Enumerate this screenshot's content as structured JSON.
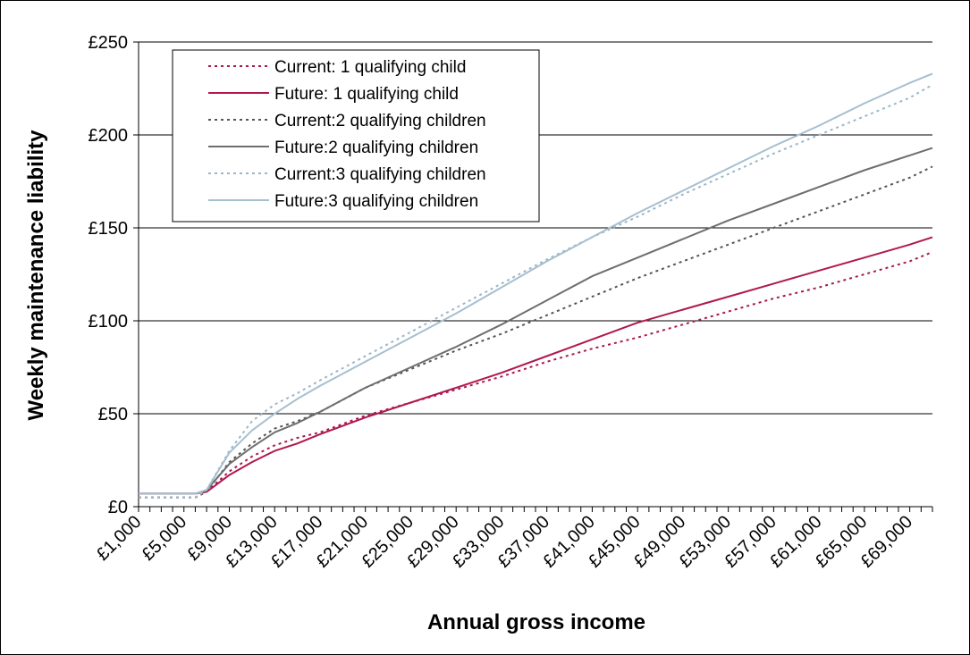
{
  "colors": {
    "current_1": "#a8184f",
    "future_1": "#b0184f",
    "current_2": "#555555",
    "future_2": "#6e6e6e",
    "current_3": "#9bb6c8",
    "future_3": "#a6bfcf"
  },
  "chart_data": {
    "type": "line",
    "xlabel": "Annual gross income",
    "ylabel": "Weekly maintenance liability",
    "ylim": [
      0,
      250
    ],
    "yticks": [
      "£0",
      "£50",
      "£100",
      "£150",
      "£200",
      "£250"
    ],
    "ytick_values": [
      0,
      50,
      100,
      150,
      200,
      250
    ],
    "xlim": [
      1000,
      71000
    ],
    "xtick_labels": [
      "£1,000",
      "£5,000",
      "£9,000",
      "£13,000",
      "£17,000",
      "£21,000",
      "£25,000",
      "£29,000",
      "£33,000",
      "£37,000",
      "£41,000",
      "£45,000",
      "£49,000",
      "£53,000",
      "£57,000",
      "£61,000",
      "£65,000",
      "£69,000"
    ],
    "xtick_values": [
      1000,
      5000,
      9000,
      13000,
      17000,
      21000,
      25000,
      29000,
      33000,
      37000,
      41000,
      45000,
      49000,
      53000,
      57000,
      61000,
      65000,
      69000
    ],
    "grid": "horizontal",
    "legend_position": "top-left",
    "x": [
      1000,
      5000,
      6000,
      7000,
      9000,
      11000,
      13000,
      15000,
      17000,
      21000,
      25000,
      29000,
      33000,
      37000,
      41000,
      45000,
      49000,
      53000,
      57000,
      61000,
      65000,
      69000,
      71000
    ],
    "series": [
      {
        "name": "Current: 1 qualifying child",
        "style": "dotted",
        "color_key": "current_1",
        "values": [
          5,
          5,
          5,
          8,
          19,
          27,
          33,
          37,
          40,
          49,
          56,
          63,
          70,
          78,
          85,
          91,
          98,
          105,
          112,
          118,
          125,
          132,
          137
        ]
      },
      {
        "name": "Future: 1 qualifying child",
        "style": "solid",
        "color_key": "future_1",
        "values": [
          7,
          7,
          7,
          8,
          17,
          24,
          30,
          34,
          39,
          48,
          56,
          64,
          72,
          81,
          90,
          99,
          106,
          113,
          120,
          127,
          134,
          141,
          145
        ]
      },
      {
        "name": "Current:2 qualifying children",
        "style": "dotted",
        "color_key": "current_2",
        "values": [
          5,
          5,
          5,
          8,
          24,
          34,
          42,
          46,
          51,
          64,
          74,
          84,
          93,
          103,
          113,
          123,
          132,
          141,
          150,
          159,
          168,
          177,
          183
        ]
      },
      {
        "name": "Future:2 qualifying children",
        "style": "solid",
        "color_key": "future_2",
        "values": [
          7,
          7,
          7,
          9,
          23,
          32,
          40,
          45,
          51,
          64,
          75,
          86,
          98,
          111,
          124,
          134,
          144,
          154,
          163,
          172,
          181,
          189,
          193
        ]
      },
      {
        "name": "Current:3 qualifying children",
        "style": "dotted",
        "color_key": "current_3",
        "values": [
          5,
          5,
          5,
          9,
          30,
          46,
          55,
          61,
          68,
          81,
          94,
          107,
          120,
          133,
          145,
          156,
          168,
          179,
          190,
          200,
          210,
          220,
          227
        ]
      },
      {
        "name": "Future:3 qualifying children",
        "style": "solid",
        "color_key": "future_3",
        "values": [
          7,
          7,
          7,
          9,
          29,
          41,
          50,
          58,
          65,
          78,
          91,
          104,
          118,
          132,
          145,
          158,
          170,
          182,
          194,
          205,
          217,
          228,
          233
        ]
      }
    ]
  }
}
